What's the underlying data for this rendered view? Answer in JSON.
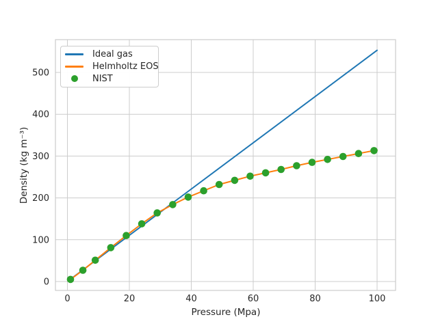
{
  "chart_data": {
    "type": "line",
    "title": "",
    "xlabel": "Pressure (Mpa)",
    "ylabel": "Density (kg m⁻³)",
    "xlim": [
      -4,
      106
    ],
    "ylim": [
      -21,
      578
    ],
    "xticks": [
      0,
      20,
      40,
      60,
      80,
      100
    ],
    "yticks": [
      0,
      100,
      200,
      300,
      400,
      500
    ],
    "grid": true,
    "grid_color": "#cccccc",
    "text_color": "#262626",
    "background_color": "#ffffff",
    "legend_position": "upper-left",
    "series": [
      {
        "name": "Ideal gas",
        "type": "line",
        "color": "#1f77b4",
        "x": [
          1,
          100
        ],
        "y": [
          5.5,
          553
        ]
      },
      {
        "name": "Helmholtz EOS",
        "type": "line",
        "color": "#ff7f0e",
        "x": [
          1,
          5,
          9,
          14,
          19,
          24,
          29,
          34,
          39,
          44,
          49,
          54,
          59,
          64,
          69,
          74,
          79,
          84,
          89,
          94,
          99,
          100
        ],
        "y": [
          5,
          27,
          51,
          81,
          110,
          138,
          164,
          184,
          202,
          217,
          232,
          242,
          252,
          260,
          268,
          277,
          285,
          292,
          299,
          306,
          313,
          314
        ]
      },
      {
        "name": "NIST",
        "type": "scatter",
        "color": "#2ca02c",
        "x": [
          1,
          5,
          9,
          14,
          19,
          24,
          29,
          34,
          39,
          44,
          49,
          54,
          59,
          64,
          69,
          74,
          79,
          84,
          89,
          94,
          99
        ],
        "y": [
          5,
          27,
          51,
          81,
          110,
          138,
          164,
          184,
          202,
          217,
          232,
          242,
          252,
          260,
          268,
          277,
          285,
          292,
          299,
          306,
          313
        ]
      }
    ]
  }
}
